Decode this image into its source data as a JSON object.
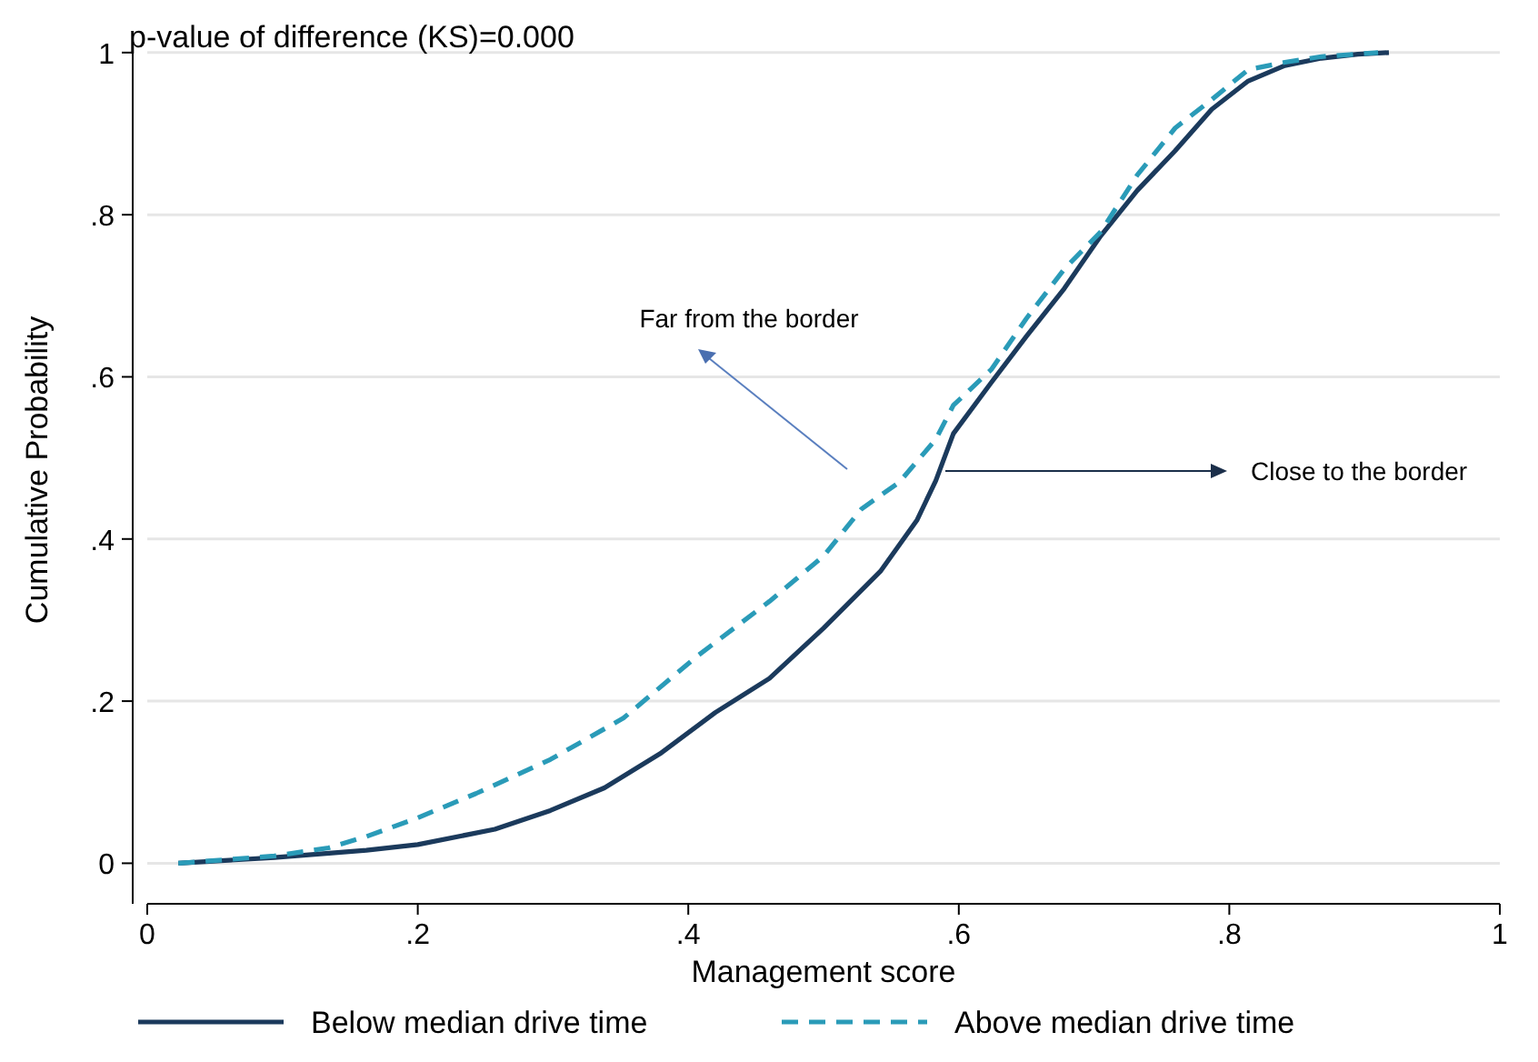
{
  "chart_data": {
    "type": "line",
    "xlabel": "Management score",
    "ylabel": "Cumulative Probability",
    "xlim": [
      0,
      1
    ],
    "ylim": [
      -0.05,
      1.02
    ],
    "xticks": [
      0,
      {
        "value": 0.2,
        "label": ".2"
      },
      {
        "value": 0.4,
        "label": ".4"
      },
      {
        "value": 0.6,
        "label": ".6"
      },
      {
        "value": 0.8,
        "label": ".8"
      },
      1
    ],
    "yticks": [
      0,
      {
        "value": 0.2,
        "label": ".2"
      },
      {
        "value": 0.4,
        "label": ".4"
      },
      {
        "value": 0.6,
        "label": ".6"
      },
      {
        "value": 0.8,
        "label": ".8"
      },
      1
    ],
    "grid": "y",
    "legend": "bottom",
    "marker": "none",
    "annotations": [
      "p-value of difference (KS)=0.000",
      "Far from the border",
      "Close to the border"
    ],
    "series": [
      {
        "name": "Below median drive time",
        "color": "#1b3a5c",
        "line_style": "solid",
        "x": [
          0.023,
          0.094,
          0.162,
          0.2,
          0.257,
          0.298,
          0.338,
          0.379,
          0.42,
          0.46,
          0.5,
          0.542,
          0.569,
          0.583,
          0.596,
          0.624,
          0.65,
          0.678,
          0.705,
          0.732,
          0.76,
          0.787,
          0.814,
          0.841,
          0.868,
          0.895,
          0.918
        ],
        "values": [
          0,
          0.007,
          0.016,
          0.023,
          0.042,
          0.065,
          0.093,
          0.135,
          0.186,
          0.228,
          0.29,
          0.36,
          0.423,
          0.472,
          0.53,
          0.593,
          0.65,
          0.709,
          0.774,
          0.83,
          0.879,
          0.93,
          0.965,
          0.984,
          0.993,
          0.998,
          1
        ]
      },
      {
        "name": "Above median drive time",
        "color": "#2a9bb8",
        "line_style": "dashed",
        "x": [
          0.023,
          0.094,
          0.134,
          0.162,
          0.2,
          0.243,
          0.298,
          0.352,
          0.407,
          0.46,
          0.5,
          0.528,
          0.556,
          0.583,
          0.596,
          0.624,
          0.65,
          0.678,
          0.705,
          0.732,
          0.76,
          0.787,
          0.814,
          0.841,
          0.868,
          0.91
        ],
        "values": [
          0,
          0.009,
          0.019,
          0.033,
          0.056,
          0.086,
          0.128,
          0.179,
          0.256,
          0.323,
          0.379,
          0.437,
          0.47,
          0.523,
          0.565,
          0.609,
          0.672,
          0.733,
          0.779,
          0.849,
          0.907,
          0.942,
          0.979,
          0.988,
          0.995,
          1
        ]
      }
    ]
  }
}
